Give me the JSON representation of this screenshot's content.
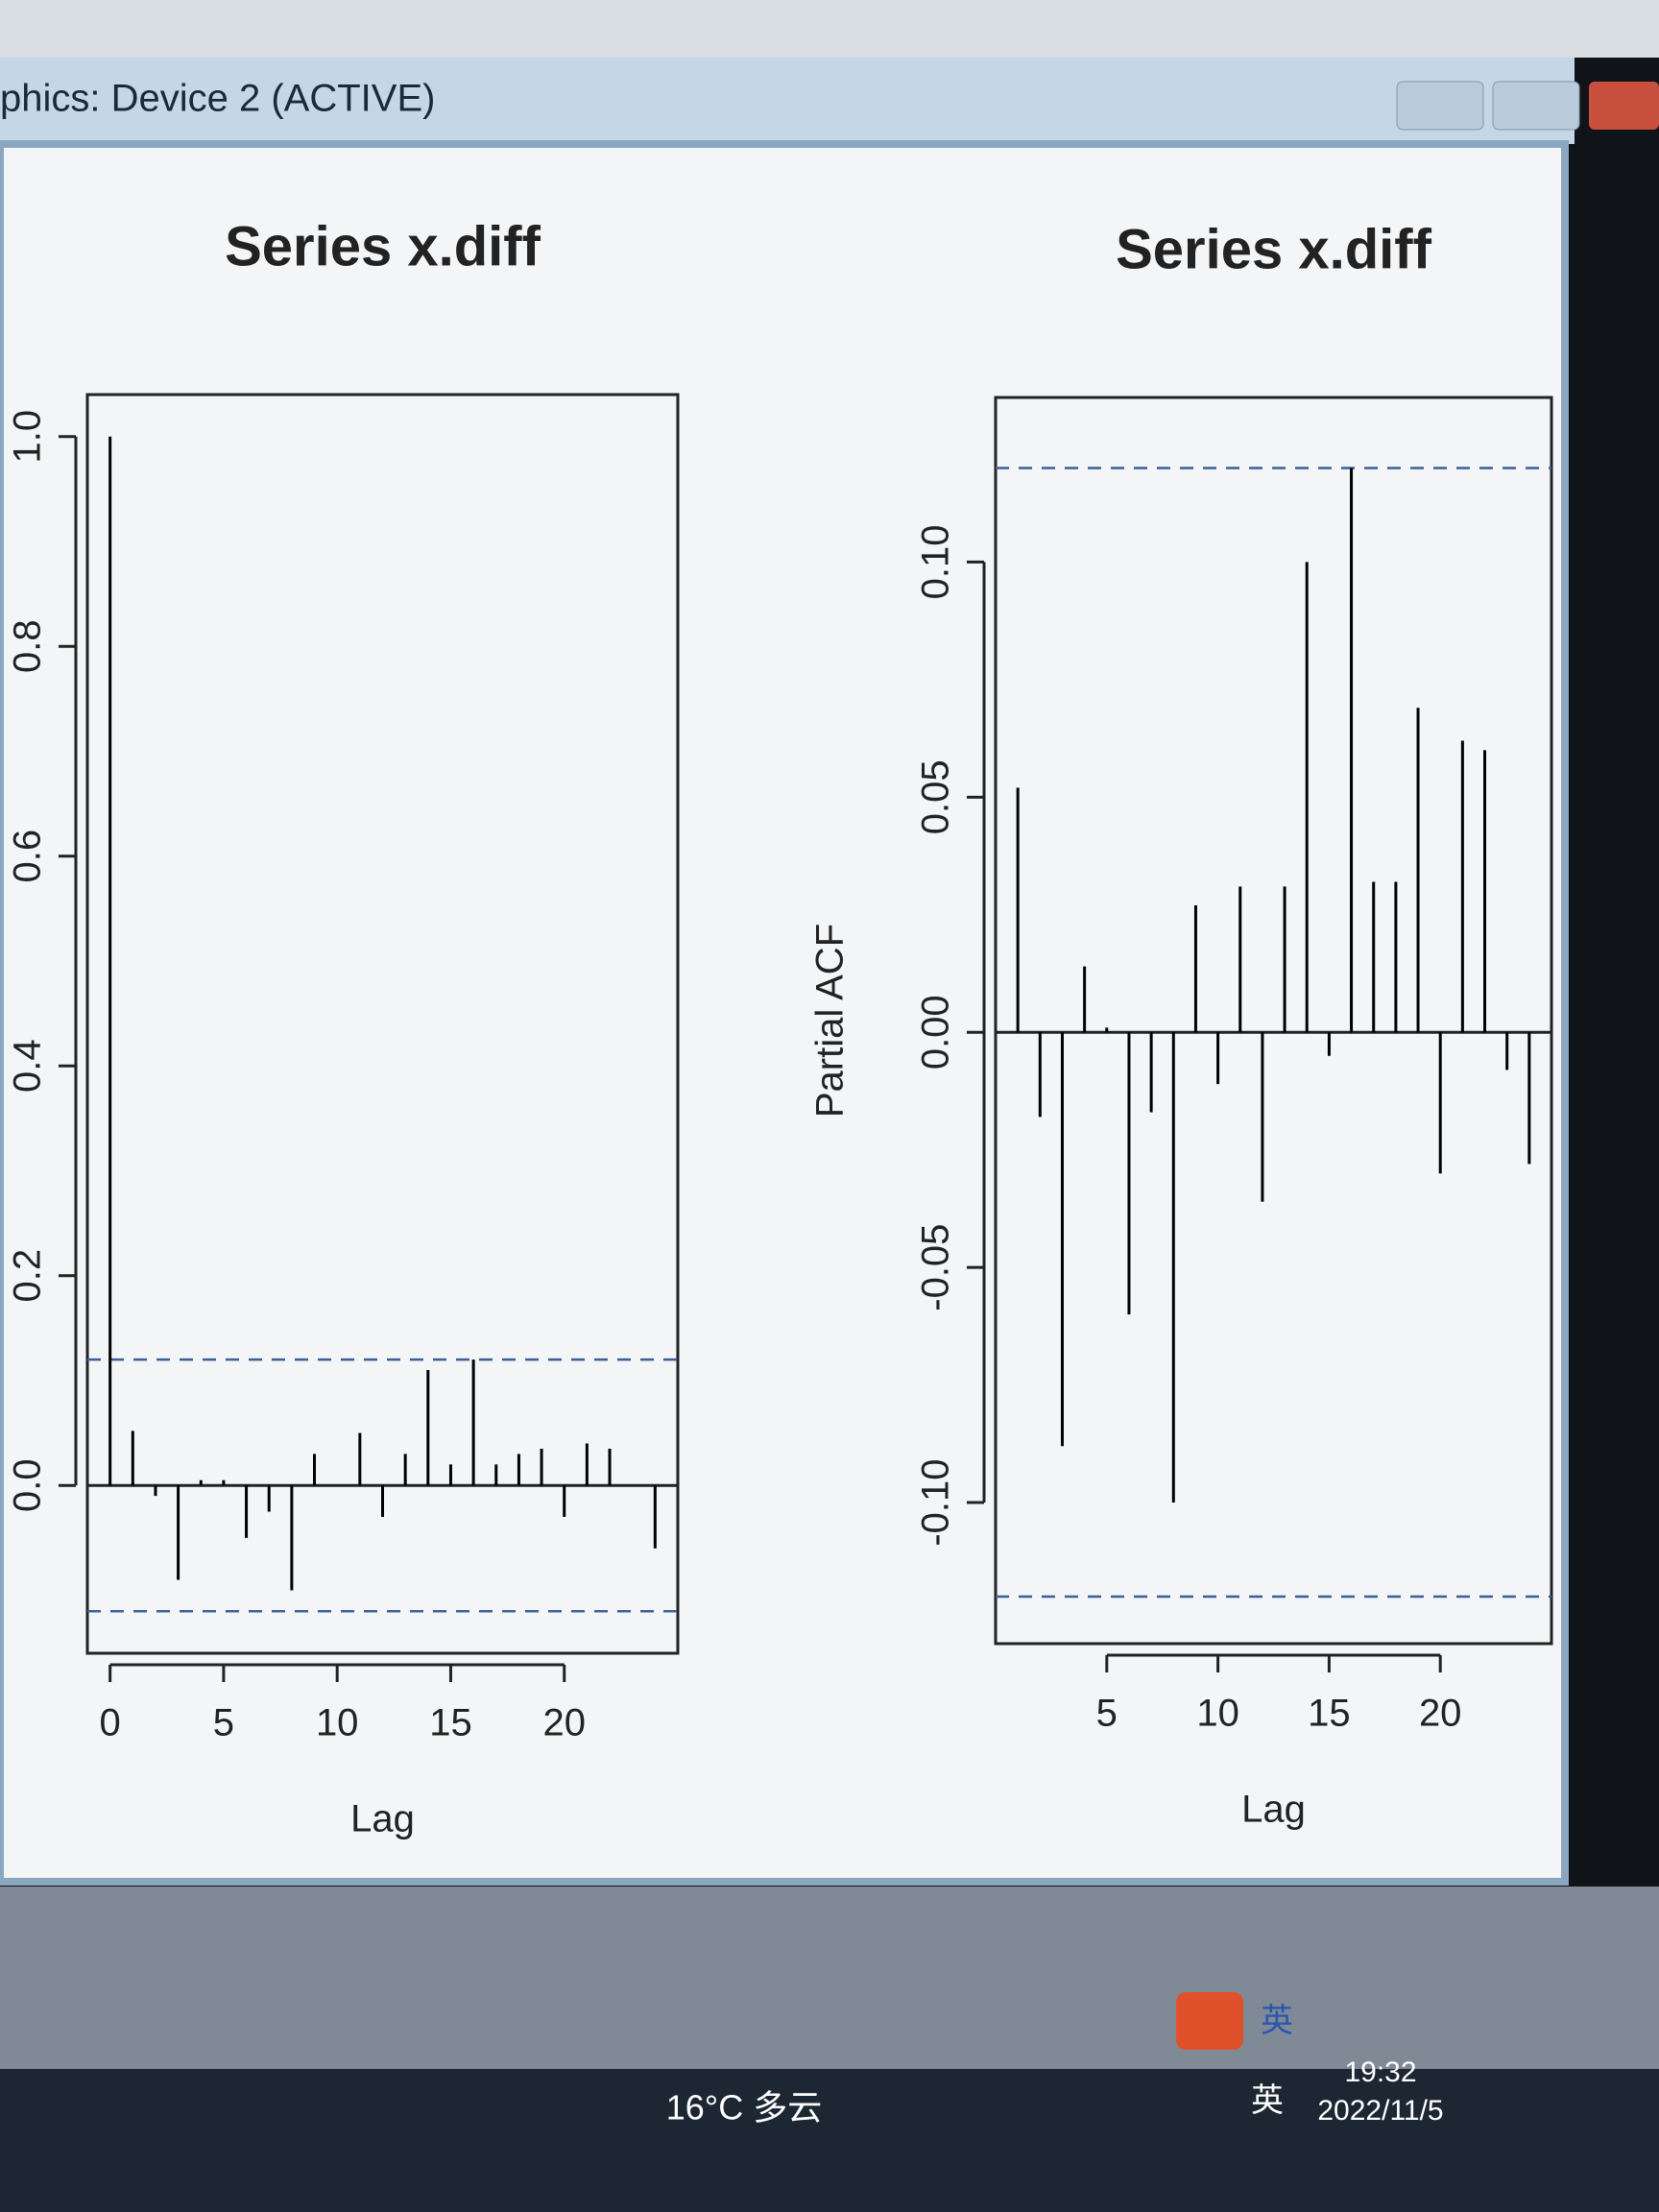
{
  "window": {
    "title": "phics: Device 2 (ACTIVE)"
  },
  "chart_data": [
    {
      "type": "spike",
      "title": "Series  x.diff",
      "xlabel": "Lag",
      "color": "#000000",
      "bound_color": "#3a5f9a",
      "x": [
        0,
        1,
        2,
        3,
        4,
        5,
        6,
        7,
        8,
        9,
        10,
        11,
        12,
        13,
        14,
        15,
        16,
        17,
        18,
        19,
        20,
        21,
        22,
        23,
        24
      ],
      "values": [
        1.0,
        0.052,
        -0.01,
        -0.09,
        0.005,
        0.005,
        -0.05,
        -0.025,
        -0.1,
        0.03,
        0.0,
        0.05,
        -0.03,
        0.03,
        0.11,
        0.02,
        0.12,
        0.02,
        0.03,
        0.035,
        -0.03,
        0.04,
        0.035,
        0.0,
        -0.06
      ],
      "confidence_bounds": [
        -0.12,
        0.12
      ],
      "xlim": [
        -1,
        25
      ],
      "ylim": [
        -0.16,
        1.04
      ],
      "xticks": [
        0,
        5,
        10,
        15,
        20
      ],
      "yticks": [
        {
          "value": 0,
          "label": "0.0"
        },
        {
          "value": 0.2,
          "label": "0.2"
        },
        {
          "value": 0.4,
          "label": "0.4"
        },
        {
          "value": 0.6,
          "label": "0.6"
        },
        {
          "value": 0.8,
          "label": "0.8"
        },
        {
          "value": 1,
          "label": "1.0"
        }
      ]
    },
    {
      "type": "spike",
      "title": "Series  x.diff",
      "xlabel": "Lag",
      "ylabel": "Partial ACF",
      "color": "#000000",
      "bound_color": "#3a5f9a",
      "x": [
        1,
        2,
        3,
        4,
        5,
        6,
        7,
        8,
        9,
        10,
        11,
        12,
        13,
        14,
        15,
        16,
        17,
        18,
        19,
        20,
        21,
        22,
        23,
        24
      ],
      "values": [
        0.052,
        -0.018,
        -0.088,
        0.014,
        0.001,
        -0.06,
        -0.017,
        -0.1,
        0.027,
        -0.011,
        0.031,
        -0.036,
        0.031,
        0.1,
        -0.005,
        0.12,
        0.032,
        0.032,
        0.069,
        -0.03,
        0.062,
        0.06,
        -0.008,
        -0.028
      ],
      "confidence_bounds": [
        -0.12,
        0.12
      ],
      "xlim": [
        0,
        25
      ],
      "ylim": [
        -0.13,
        0.135
      ],
      "xticks": [
        5,
        10,
        15,
        20
      ],
      "yticks": [
        {
          "value": -0.1,
          "label": "-0.10"
        },
        {
          "value": -0.05,
          "label": "-0.05"
        },
        {
          "value": 0,
          "label": "0.00"
        },
        {
          "value": 0.05,
          "label": "0.05"
        },
        {
          "value": 0.1,
          "label": "0.10"
        }
      ]
    }
  ],
  "taskbar": {
    "weather": "16°C 多云",
    "ime": "英",
    "time": "19:32",
    "date": "2022/11/5"
  }
}
